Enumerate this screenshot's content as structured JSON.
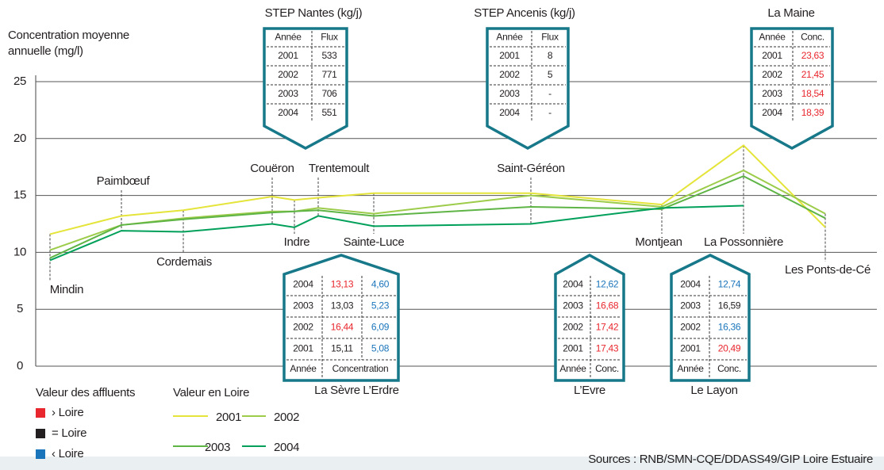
{
  "chart_data": {
    "type": "line",
    "ylabel": "Concentration moyenne annuelle (mg/l)",
    "categories": [
      "Mindin",
      "Paimbœuf",
      "Cordemais",
      "Couëron",
      "Indre",
      "Trentemoult",
      "Sainte-Luce",
      "Saint-Géréon",
      "Montjean",
      "La Possonnière",
      "Les Ponts-de-Cé"
    ],
    "series": [
      {
        "name": "2001",
        "color": "#e4e43a",
        "values": [
          11.6,
          13.2,
          13.7,
          14.9,
          14.6,
          14.8,
          15.2,
          15.2,
          14.2,
          19.4,
          12.2
        ]
      },
      {
        "name": "2002",
        "color": "#9ccc4a",
        "values": [
          10.2,
          12.4,
          13.0,
          13.6,
          13.6,
          13.9,
          13.4,
          15.0,
          14.0,
          17.2,
          13.4
        ]
      },
      {
        "name": "2003",
        "color": "#5fb446",
        "values": [
          9.5,
          12.4,
          12.9,
          13.5,
          13.6,
          13.7,
          13.2,
          14.0,
          13.8,
          16.7,
          13.0
        ]
      },
      {
        "name": "2004",
        "color": "#00a05a",
        "values": [
          9.3,
          11.9,
          11.8,
          12.5,
          12.2,
          13.2,
          12.3,
          12.5,
          13.9,
          14.1,
          null
        ]
      }
    ],
    "ylim": [
      0,
      25
    ],
    "yticks": [
      0,
      5,
      10,
      15,
      20,
      25
    ],
    "grid": true,
    "legend_title": "Valeur en Loire"
  },
  "tables": [
    {
      "title": "STEP Nantes (kg/j)",
      "headers": [
        "Année",
        "Flux"
      ],
      "rows": [
        [
          "2001",
          "533"
        ],
        [
          "2002",
          "771"
        ],
        [
          "2003",
          "706"
        ],
        [
          "2004",
          "551"
        ]
      ]
    },
    {
      "title": "STEP Ancenis (kg/j)",
      "headers": [
        "Année",
        "Flux"
      ],
      "rows": [
        [
          "2001",
          "8"
        ],
        [
          "2002",
          "5"
        ],
        [
          "2003",
          "-"
        ],
        [
          "2004",
          "-"
        ]
      ]
    },
    {
      "title": "La Maine",
      "headers": [
        "Année",
        "Conc."
      ],
      "rows": [
        [
          "2001",
          "23,63"
        ],
        [
          "2002",
          "21,45"
        ],
        [
          "2003",
          "18,54"
        ],
        [
          "2004",
          "18,39"
        ]
      ],
      "colors": [
        [
          "#e8262d"
        ],
        [
          "#e8262d"
        ],
        [
          "#e8262d"
        ],
        [
          "#e8262d"
        ]
      ]
    },
    {
      "labels": [
        "La Sèvre",
        "L’Erdre"
      ],
      "headers": [
        "Année",
        "Concentration"
      ],
      "rows": [
        [
          "2004",
          "13,13",
          "4,60"
        ],
        [
          "2003",
          "13,03",
          "5,23"
        ],
        [
          "2002",
          "16,44",
          "6,09"
        ],
        [
          "2001",
          "15,11",
          "5,08"
        ]
      ],
      "colors": [
        [
          "#e8262d",
          "#1b75bb"
        ],
        [
          "#231f20",
          "#1b75bb"
        ],
        [
          "#e8262d",
          "#1b75bb"
        ],
        [
          "#231f20",
          "#1b75bb"
        ]
      ]
    },
    {
      "labels": [
        "L’Evre"
      ],
      "headers": [
        "Année",
        "Conc."
      ],
      "rows": [
        [
          "2004",
          "12,62"
        ],
        [
          "2003",
          "16,68"
        ],
        [
          "2002",
          "17,42"
        ],
        [
          "2001",
          "17,43"
        ]
      ],
      "colors": [
        [
          "#1b75bb"
        ],
        [
          "#e8262d"
        ],
        [
          "#e8262d"
        ],
        [
          "#e8262d"
        ]
      ]
    },
    {
      "labels": [
        "Le Layon"
      ],
      "headers": [
        "Année",
        "Conc."
      ],
      "rows": [
        [
          "2004",
          "12,74"
        ],
        [
          "2003",
          "16,59"
        ],
        [
          "2002",
          "16,36"
        ],
        [
          "2001",
          "20,49"
        ]
      ],
      "colors": [
        [
          "#1b75bb"
        ],
        [
          "#231f20"
        ],
        [
          "#1b75bb"
        ],
        [
          "#e8262d"
        ]
      ]
    }
  ],
  "affluents_legend": {
    "title": "Valeur des affluents",
    "items": [
      {
        "label": "› Loire",
        "color": "#e8262d"
      },
      {
        "label": "= Loire",
        "color": "#231f20"
      },
      {
        "label": "‹ Loire",
        "color": "#1b75bb"
      }
    ]
  },
  "source": "Sources : RNB/SMN-CQE/DDASS49/GIP Loire Estuaire"
}
